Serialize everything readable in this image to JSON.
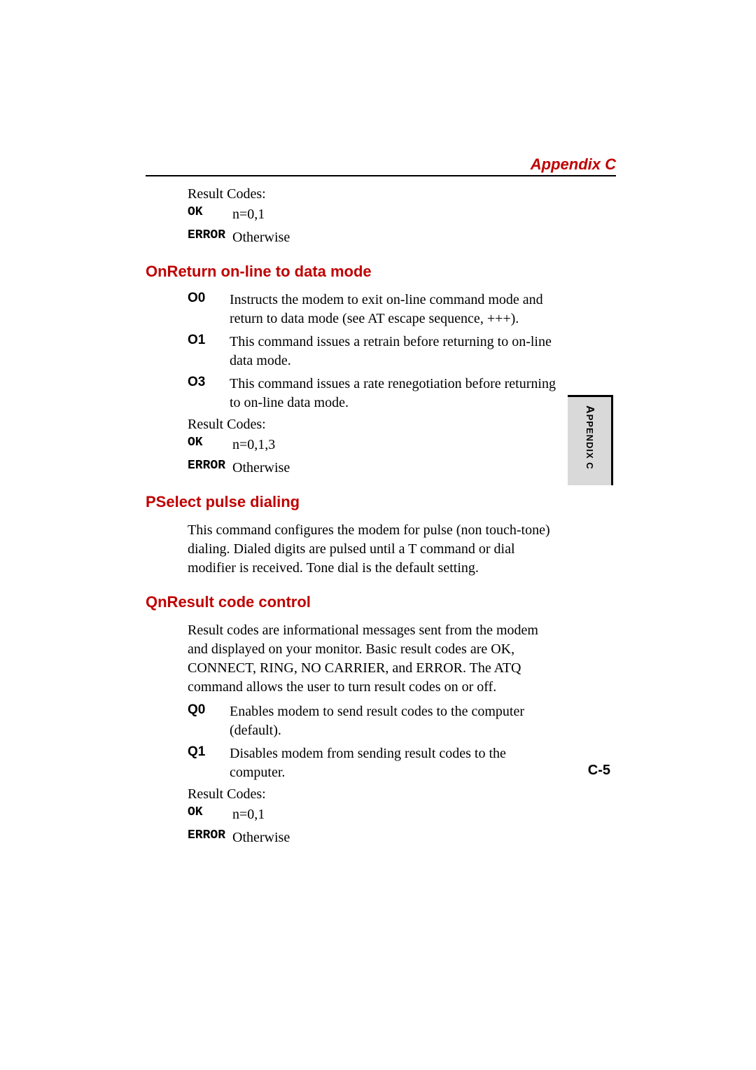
{
  "header": {
    "title": "Appendix C"
  },
  "section1": {
    "result_codes_label": "Result Codes:",
    "ok_label": "OK",
    "ok_val": "n=0,1",
    "err_label": "ERROR",
    "err_val": "Otherwise"
  },
  "onreturn": {
    "title": "OnReturn on-line to data mode",
    "rows": [
      {
        "code": "O0",
        "desc": "Instructs the modem to exit on-line command mode and return to data mode (see AT escape sequence, +++)."
      },
      {
        "code": "O1",
        "desc": "This command issues a retrain before returning to on-line data mode."
      },
      {
        "code": "O3",
        "desc": "This command issues a rate renegotiation before returning to on-line data mode."
      }
    ],
    "result_codes_label": "Result Codes:",
    "ok_label": "OK",
    "ok_val": "n=0,1,3",
    "err_label": "ERROR",
    "err_val": "Otherwise"
  },
  "pselect": {
    "title": "PSelect pulse dialing",
    "para": "This command configures the modem for pulse (non touch-tone) dialing. Dialed digits are pulsed until a T command or dial modifier is received. Tone dial is the default setting."
  },
  "qn": {
    "title": "QnResult code control",
    "para": "Result codes are informational messages sent from the modem and displayed on your monitor. Basic result codes are OK, CONNECT, RING, NO CARRIER, and ERROR. The ATQ command allows the user to turn result codes on or off.",
    "rows": [
      {
        "code": "Q0",
        "desc": "Enables modem to send result codes to the computer (default)."
      },
      {
        "code": "Q1",
        "desc": "Disables modem from sending result codes to the computer."
      }
    ],
    "result_codes_label": "Result Codes:",
    "ok_label": "OK",
    "ok_val": "n=0,1",
    "err_label": "ERROR",
    "err_val": "Otherwise"
  },
  "sidebar": {
    "small": "A",
    "rest": "PPENDIX C"
  },
  "pagenum": "C-5",
  "colors": {
    "accent": "#c00000",
    "sidebar_bg": "#d9d9d9",
    "border": "#000000"
  }
}
